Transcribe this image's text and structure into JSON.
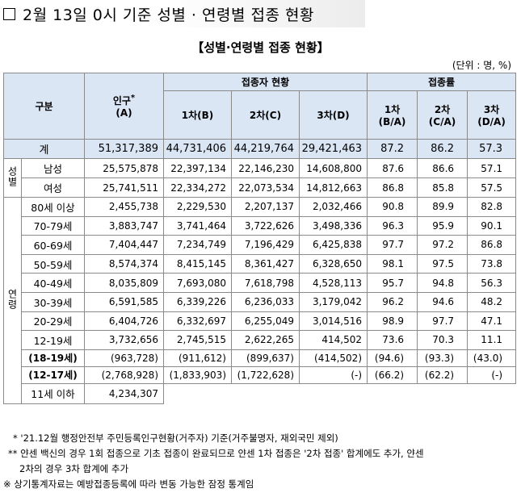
{
  "title": "2월 13일 0시 기준 성별 · 연령별 접종 현황",
  "subtitle": "【성별·연령별 접종 현황】",
  "unit": "(단위 : 명, %)",
  "headers": {
    "category": "구분",
    "population_line1": "인구",
    "population_star": "*",
    "population_line2": "(A)",
    "vaccinated_group": "접종자 현황",
    "dose1": "1차(B)",
    "dose2": "2차(C)",
    "dose3": "3차(D)",
    "rate_group": "접종률",
    "rate1_line1": "1차",
    "rate1_line2": "(B/A)",
    "rate2_line1": "2차",
    "rate2_line2": "(C/A)",
    "rate3_line1": "3차",
    "rate3_line2": "(D/A)"
  },
  "group_labels": {
    "sex": "성별",
    "age": "연령"
  },
  "total": {
    "label": "계",
    "pop": "51,317,389",
    "d1": "44,731,406",
    "d2": "44,219,764",
    "d3": "29,421,463",
    "r1": "87.2",
    "r2": "86.2",
    "r3": "57.3"
  },
  "sex_rows": [
    {
      "label": "남성",
      "pop": "25,575,878",
      "d1": "22,397,134",
      "d2": "22,146,230",
      "d3": "14,608,800",
      "r1": "87.6",
      "r2": "86.6",
      "r3": "57.1"
    },
    {
      "label": "여성",
      "pop": "25,741,511",
      "d1": "22,334,272",
      "d2": "22,073,534",
      "d3": "14,812,663",
      "r1": "86.8",
      "r2": "85.8",
      "r3": "57.5"
    }
  ],
  "age_rows": [
    {
      "label": "80세 이상",
      "pop": "2,455,738",
      "d1": "2,229,530",
      "d2": "2,207,137",
      "d3": "2,032,466",
      "r1": "90.8",
      "r2": "89.9",
      "r3": "82.8"
    },
    {
      "label": "70-79세",
      "pop": "3,883,747",
      "d1": "3,741,464",
      "d2": "3,722,626",
      "d3": "3,498,336",
      "r1": "96.3",
      "r2": "95.9",
      "r3": "90.1"
    },
    {
      "label": "60-69세",
      "pop": "7,404,447",
      "d1": "7,234,749",
      "d2": "7,196,429",
      "d3": "6,425,838",
      "r1": "97.7",
      "r2": "97.2",
      "r3": "86.8"
    },
    {
      "label": "50-59세",
      "pop": "8,574,374",
      "d1": "8,415,145",
      "d2": "8,361,427",
      "d3": "6,328,650",
      "r1": "98.1",
      "r2": "97.5",
      "r3": "73.8"
    },
    {
      "label": "40-49세",
      "pop": "8,035,809",
      "d1": "7,693,080",
      "d2": "7,618,798",
      "d3": "4,528,113",
      "r1": "95.7",
      "r2": "94.8",
      "r3": "56.3"
    },
    {
      "label": "30-39세",
      "pop": "6,591,585",
      "d1": "6,339,226",
      "d2": "6,236,033",
      "d3": "3,179,042",
      "r1": "96.2",
      "r2": "94.6",
      "r3": "48.2"
    },
    {
      "label": "20-29세",
      "pop": "6,404,726",
      "d1": "6,332,697",
      "d2": "6,255,049",
      "d3": "3,014,516",
      "r1": "98.9",
      "r2": "97.7",
      "r3": "47.1"
    },
    {
      "label": "12-19세",
      "pop": "3,732,656",
      "d1": "2,745,515",
      "d2": "2,622,265",
      "d3": "414,502",
      "r1": "73.6",
      "r2": "70.3",
      "r3": "11.1"
    }
  ],
  "sub_rows": [
    {
      "label": "(18-19세)",
      "pop": "(963,728)",
      "d1": "(911,612)",
      "d2": "(899,637)",
      "d3": "(414,502)",
      "r1": "(94.6)",
      "r2": "(93.3)",
      "r3": "(43.0)"
    },
    {
      "label": "(12-17세)",
      "pop": "(2,768,928)",
      "d1": "(1,833,903)",
      "d2": "(1,722,628)",
      "d3": "(-)",
      "r1": "(66.2)",
      "r2": "(62.2)",
      "r3": "(-)"
    }
  ],
  "under11": {
    "label": "11세 이하",
    "pop": "4,234,307"
  },
  "notes": [
    "* '21.12월 행정안전부 주민등록인구현황(거주자) 기준(거주불명자, 재외국민 제외)",
    "** 얀센 백신의 경우 1회 접종으로 기초 접종이 완료되므로 얀센 1차 접종은 '2차 접종' 합계에도 추가, 얀센",
    "2차의 경우 3차 합계에 추가",
    "※ 상기통계자료는 예방접종등록에 따라 변동 가능한 잠정 통계임"
  ]
}
